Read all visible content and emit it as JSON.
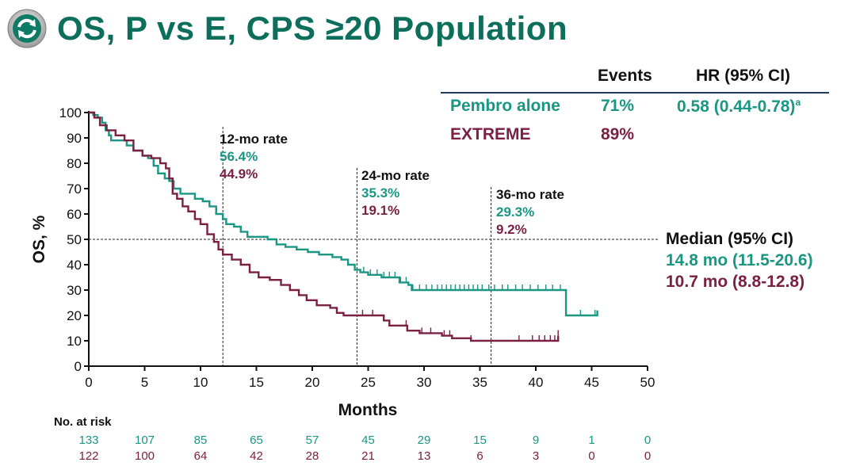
{
  "title": "OS, P vs E, CPS ≥20 Population",
  "icon": "refresh-cycle-icon",
  "colors": {
    "pembro": "#1a9683",
    "extreme": "#7a2040",
    "title": "#0d6e5c"
  },
  "legend": {
    "col_events": "Events",
    "col_hr": "HR (95% CI)",
    "rows": [
      {
        "name": "Pembro alone",
        "events": "71%",
        "hr": "0.58 (0.44-0.78)",
        "hr_sup": "a"
      },
      {
        "name": "EXTREME",
        "events": "89%",
        "hr": ""
      }
    ]
  },
  "annotations": [
    {
      "label": "12-mo rate",
      "pembro": "56.4%",
      "extreme": "44.9%"
    },
    {
      "label": "24-mo rate",
      "pembro": "35.3%",
      "extreme": "19.1%"
    },
    {
      "label": "36-mo rate",
      "pembro": "29.3%",
      "extreme": "9.2%"
    }
  ],
  "median": {
    "label": "Median (95% CI)",
    "pembro": "14.8 mo (11.5-20.6)",
    "extreme": "10.7 mo (8.8-12.8)"
  },
  "risk": {
    "label": "No. at risk",
    "pembro": [
      "133",
      "107",
      "85",
      "65",
      "57",
      "45",
      "29",
      "15",
      "9",
      "1",
      "0"
    ],
    "extreme": [
      "122",
      "100",
      "64",
      "42",
      "28",
      "21",
      "13",
      "6",
      "3",
      "0",
      "0"
    ]
  },
  "chart_data": {
    "type": "line",
    "title": "OS, P vs E, CPS ≥20 Population",
    "xlabel": "Months",
    "ylabel": "OS, %",
    "xlim": [
      0,
      50
    ],
    "ylim": [
      0,
      100
    ],
    "xticks": [
      0,
      5,
      10,
      15,
      20,
      25,
      30,
      35,
      40,
      45,
      50
    ],
    "yticks": [
      0,
      10,
      20,
      30,
      40,
      50,
      60,
      70,
      80,
      90,
      100
    ],
    "reference_lines": {
      "horizontal": 50,
      "vertical": [
        12,
        24,
        36
      ]
    },
    "series": [
      {
        "name": "Pembro alone",
        "points": [
          [
            0,
            100
          ],
          [
            0.4,
            99
          ],
          [
            0.8,
            98
          ],
          [
            1.2,
            96
          ],
          [
            1.5,
            93
          ],
          [
            1.8,
            91
          ],
          [
            2,
            89
          ],
          [
            3,
            89
          ],
          [
            3.4,
            87
          ],
          [
            4,
            85
          ],
          [
            4.8,
            83
          ],
          [
            5.3,
            82
          ],
          [
            5.8,
            79
          ],
          [
            6.2,
            76
          ],
          [
            6.8,
            74
          ],
          [
            7.2,
            73
          ],
          [
            7.6,
            70
          ],
          [
            8.2,
            68
          ],
          [
            9.5,
            66
          ],
          [
            10.2,
            65
          ],
          [
            10.8,
            63
          ],
          [
            11.4,
            60
          ],
          [
            12,
            58
          ],
          [
            12.3,
            56
          ],
          [
            13,
            55
          ],
          [
            13.6,
            53
          ],
          [
            14.2,
            51
          ],
          [
            15,
            51
          ],
          [
            16,
            50
          ],
          [
            16.8,
            48
          ],
          [
            17.6,
            47
          ],
          [
            18.6,
            46
          ],
          [
            19.6,
            45
          ],
          [
            20.6,
            44
          ],
          [
            21.8,
            43
          ],
          [
            22.6,
            42
          ],
          [
            23.2,
            40
          ],
          [
            23.8,
            38
          ],
          [
            24.3,
            37
          ],
          [
            25,
            36
          ],
          [
            26.2,
            35
          ],
          [
            27.8,
            33
          ],
          [
            28.6,
            32
          ],
          [
            28.9,
            30
          ],
          [
            42.6,
            30
          ],
          [
            42.7,
            20
          ],
          [
            45.5,
            20
          ],
          [
            45.5,
            22
          ]
        ],
        "censor_x": [
          24.6,
          25.2,
          25.8,
          26.4,
          26.9,
          27.4,
          27.9,
          28.4,
          29,
          29.6,
          30.2,
          30.7,
          31.2,
          31.6,
          32,
          32.4,
          32.8,
          33.2,
          33.6,
          34,
          34.4,
          34.8,
          35.2,
          35.8,
          36.3,
          37,
          37.5,
          38.2,
          38.8,
          39.5,
          40.2,
          40.9,
          41.5,
          42.2,
          44,
          45.3
        ]
      },
      {
        "name": "EXTREME",
        "points": [
          [
            0,
            100
          ],
          [
            0.5,
            98
          ],
          [
            1,
            95
          ],
          [
            1.6,
            93
          ],
          [
            2.4,
            91
          ],
          [
            3.2,
            89
          ],
          [
            4,
            85
          ],
          [
            4.8,
            83
          ],
          [
            5.6,
            82
          ],
          [
            6.4,
            80
          ],
          [
            6.9,
            78
          ],
          [
            7.2,
            74
          ],
          [
            7.5,
            68
          ],
          [
            7.9,
            66
          ],
          [
            8.4,
            63
          ],
          [
            8.9,
            61
          ],
          [
            9.5,
            58
          ],
          [
            10,
            56
          ],
          [
            10.6,
            52
          ],
          [
            11.2,
            49
          ],
          [
            11.6,
            46
          ],
          [
            12,
            44
          ],
          [
            12.8,
            42
          ],
          [
            13.6,
            40
          ],
          [
            14.4,
            37
          ],
          [
            15.2,
            35
          ],
          [
            16.2,
            34
          ],
          [
            17.2,
            32
          ],
          [
            18,
            30
          ],
          [
            18.8,
            28
          ],
          [
            19.5,
            26
          ],
          [
            20.4,
            24
          ],
          [
            21.6,
            23
          ],
          [
            22.2,
            21
          ],
          [
            22.8,
            20
          ],
          [
            24,
            20
          ],
          [
            25.8,
            20
          ],
          [
            26.4,
            18
          ],
          [
            26.9,
            16
          ],
          [
            28,
            16
          ],
          [
            28.5,
            14
          ],
          [
            29.6,
            13
          ],
          [
            31,
            13
          ],
          [
            31.6,
            12
          ],
          [
            32.5,
            11
          ],
          [
            34,
            11
          ],
          [
            34.2,
            10
          ],
          [
            42,
            10
          ],
          [
            42,
            12
          ]
        ],
        "censor_x": [
          24.5,
          25.4,
          28.4,
          29.8,
          30.6,
          31.8,
          32.3,
          34.2,
          38.5,
          39.7,
          40.3,
          40.8,
          41.3,
          41.7,
          42
        ]
      }
    ]
  }
}
